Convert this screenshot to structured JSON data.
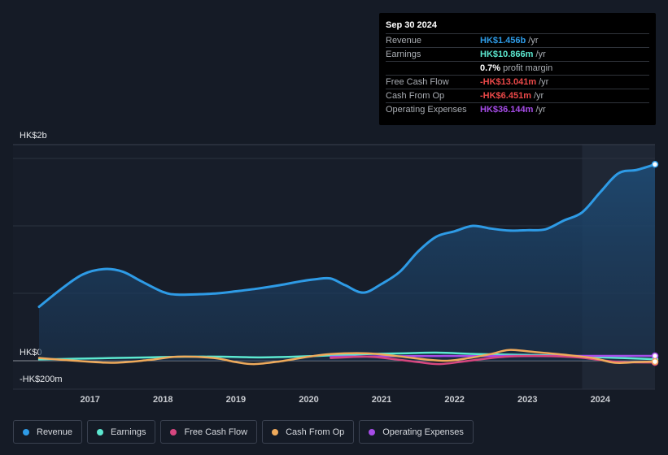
{
  "tooltip": {
    "date": "Sep 30 2024",
    "rows": [
      {
        "label": "Revenue",
        "value": "HK$1.456b",
        "unit": "/yr",
        "color": "#2e9be6"
      },
      {
        "label": "Earnings",
        "value": "HK$10.866m",
        "unit": "/yr",
        "color": "#5ce8d0"
      },
      {
        "label": "",
        "value": "0.7%",
        "unit": "profit margin",
        "color": "#ffffff"
      },
      {
        "label": "Free Cash Flow",
        "value": "-HK$13.041m",
        "unit": "/yr",
        "color": "#ea4848"
      },
      {
        "label": "Cash From Op",
        "value": "-HK$6.451m",
        "unit": "/yr",
        "color": "#ea4848"
      },
      {
        "label": "Operating Expenses",
        "value": "HK$36.144m",
        "unit": "/yr",
        "color": "#a64ce8"
      }
    ]
  },
  "legend": [
    {
      "label": "Revenue",
      "color": "#2e9be6"
    },
    {
      "label": "Earnings",
      "color": "#5ce8d0"
    },
    {
      "label": "Free Cash Flow",
      "color": "#d6467f"
    },
    {
      "label": "Cash From Op",
      "color": "#efaa5b"
    },
    {
      "label": "Operating Expenses",
      "color": "#a64ce8"
    }
  ],
  "chart_data": {
    "type": "line",
    "y_unit_label_top": "HK$2b",
    "y_unit_label_zero": "HK$0",
    "y_unit_label_bottom": "-HK$200m",
    "ylim": [
      -200,
      1600
    ],
    "xlim": [
      2016.3,
      2024.75
    ],
    "x_ticks": [
      2017,
      2018,
      2019,
      2020,
      2021,
      2022,
      2023,
      2024
    ],
    "x_tick_labels": [
      "2017",
      "2018",
      "2019",
      "2020",
      "2021",
      "2022",
      "2023",
      "2024"
    ],
    "forecast_shade_start": 2023.75,
    "series": [
      {
        "name": "Revenue",
        "color": "#2e9be6",
        "area": true,
        "x": [
          2016.3,
          2016.6,
          2016.9,
          2017.2,
          2017.45,
          2017.7,
          2018.0,
          2018.2,
          2018.5,
          2018.75,
          2019.0,
          2019.3,
          2019.6,
          2019.9,
          2020.1,
          2020.3,
          2020.5,
          2020.75,
          2021.0,
          2021.25,
          2021.5,
          2021.75,
          2022.0,
          2022.25,
          2022.5,
          2022.75,
          2023.0,
          2023.25,
          2023.5,
          2023.75,
          2024.0,
          2024.25,
          2024.5,
          2024.75
        ],
        "y": [
          400,
          530,
          640,
          680,
          660,
          590,
          510,
          490,
          493,
          500,
          515,
          535,
          560,
          590,
          605,
          610,
          560,
          505,
          570,
          660,
          810,
          920,
          960,
          1000,
          980,
          965,
          968,
          975,
          1040,
          1100,
          1250,
          1390,
          1415,
          1456
        ]
      },
      {
        "name": "Earnings",
        "color": "#5ce8d0",
        "area": false,
        "x": [
          2016.3,
          2016.8,
          2017.3,
          2017.8,
          2018.3,
          2018.8,
          2019.3,
          2019.8,
          2020.3,
          2020.8,
          2021.3,
          2021.75,
          2022.3,
          2022.8,
          2023.3,
          2023.8,
          2024.3,
          2024.75
        ],
        "y": [
          10,
          15,
          20,
          25,
          30,
          30,
          25,
          30,
          40,
          50,
          55,
          60,
          50,
          45,
          40,
          30,
          20,
          11
        ]
      },
      {
        "name": "Free Cash Flow",
        "color": "#d6467f",
        "area": false,
        "x": [
          2020.3,
          2020.8,
          2021.2,
          2021.5,
          2021.8,
          2022.2,
          2022.7,
          2023.2,
          2023.7,
          2024.0,
          2024.3,
          2024.75
        ],
        "y": [
          20,
          30,
          10,
          -10,
          -25,
          0,
          30,
          35,
          25,
          5,
          -10,
          -13
        ]
      },
      {
        "name": "Cash From Op",
        "color": "#efaa5b",
        "area": false,
        "x": [
          2016.3,
          2016.8,
          2017.3,
          2017.8,
          2018.2,
          2018.7,
          2019.0,
          2019.25,
          2019.6,
          2020.0,
          2020.3,
          2020.8,
          2021.2,
          2021.6,
          2021.9,
          2022.2,
          2022.5,
          2022.75,
          2023.1,
          2023.5,
          2023.9,
          2024.2,
          2024.5,
          2024.75
        ],
        "y": [
          20,
          0,
          -15,
          5,
          30,
          20,
          -10,
          -25,
          -5,
          30,
          50,
          55,
          35,
          10,
          0,
          20,
          50,
          80,
          65,
          45,
          20,
          -15,
          -10,
          -6
        ]
      },
      {
        "name": "Operating Expenses",
        "color": "#a64ce8",
        "area": false,
        "x": [
          2020.3,
          2020.8,
          2021.3,
          2021.8,
          2022.3,
          2022.8,
          2023.3,
          2023.8,
          2024.3,
          2024.75
        ],
        "y": [
          30,
          32,
          34,
          35,
          35,
          36,
          36,
          36,
          36,
          36
        ]
      }
    ]
  }
}
